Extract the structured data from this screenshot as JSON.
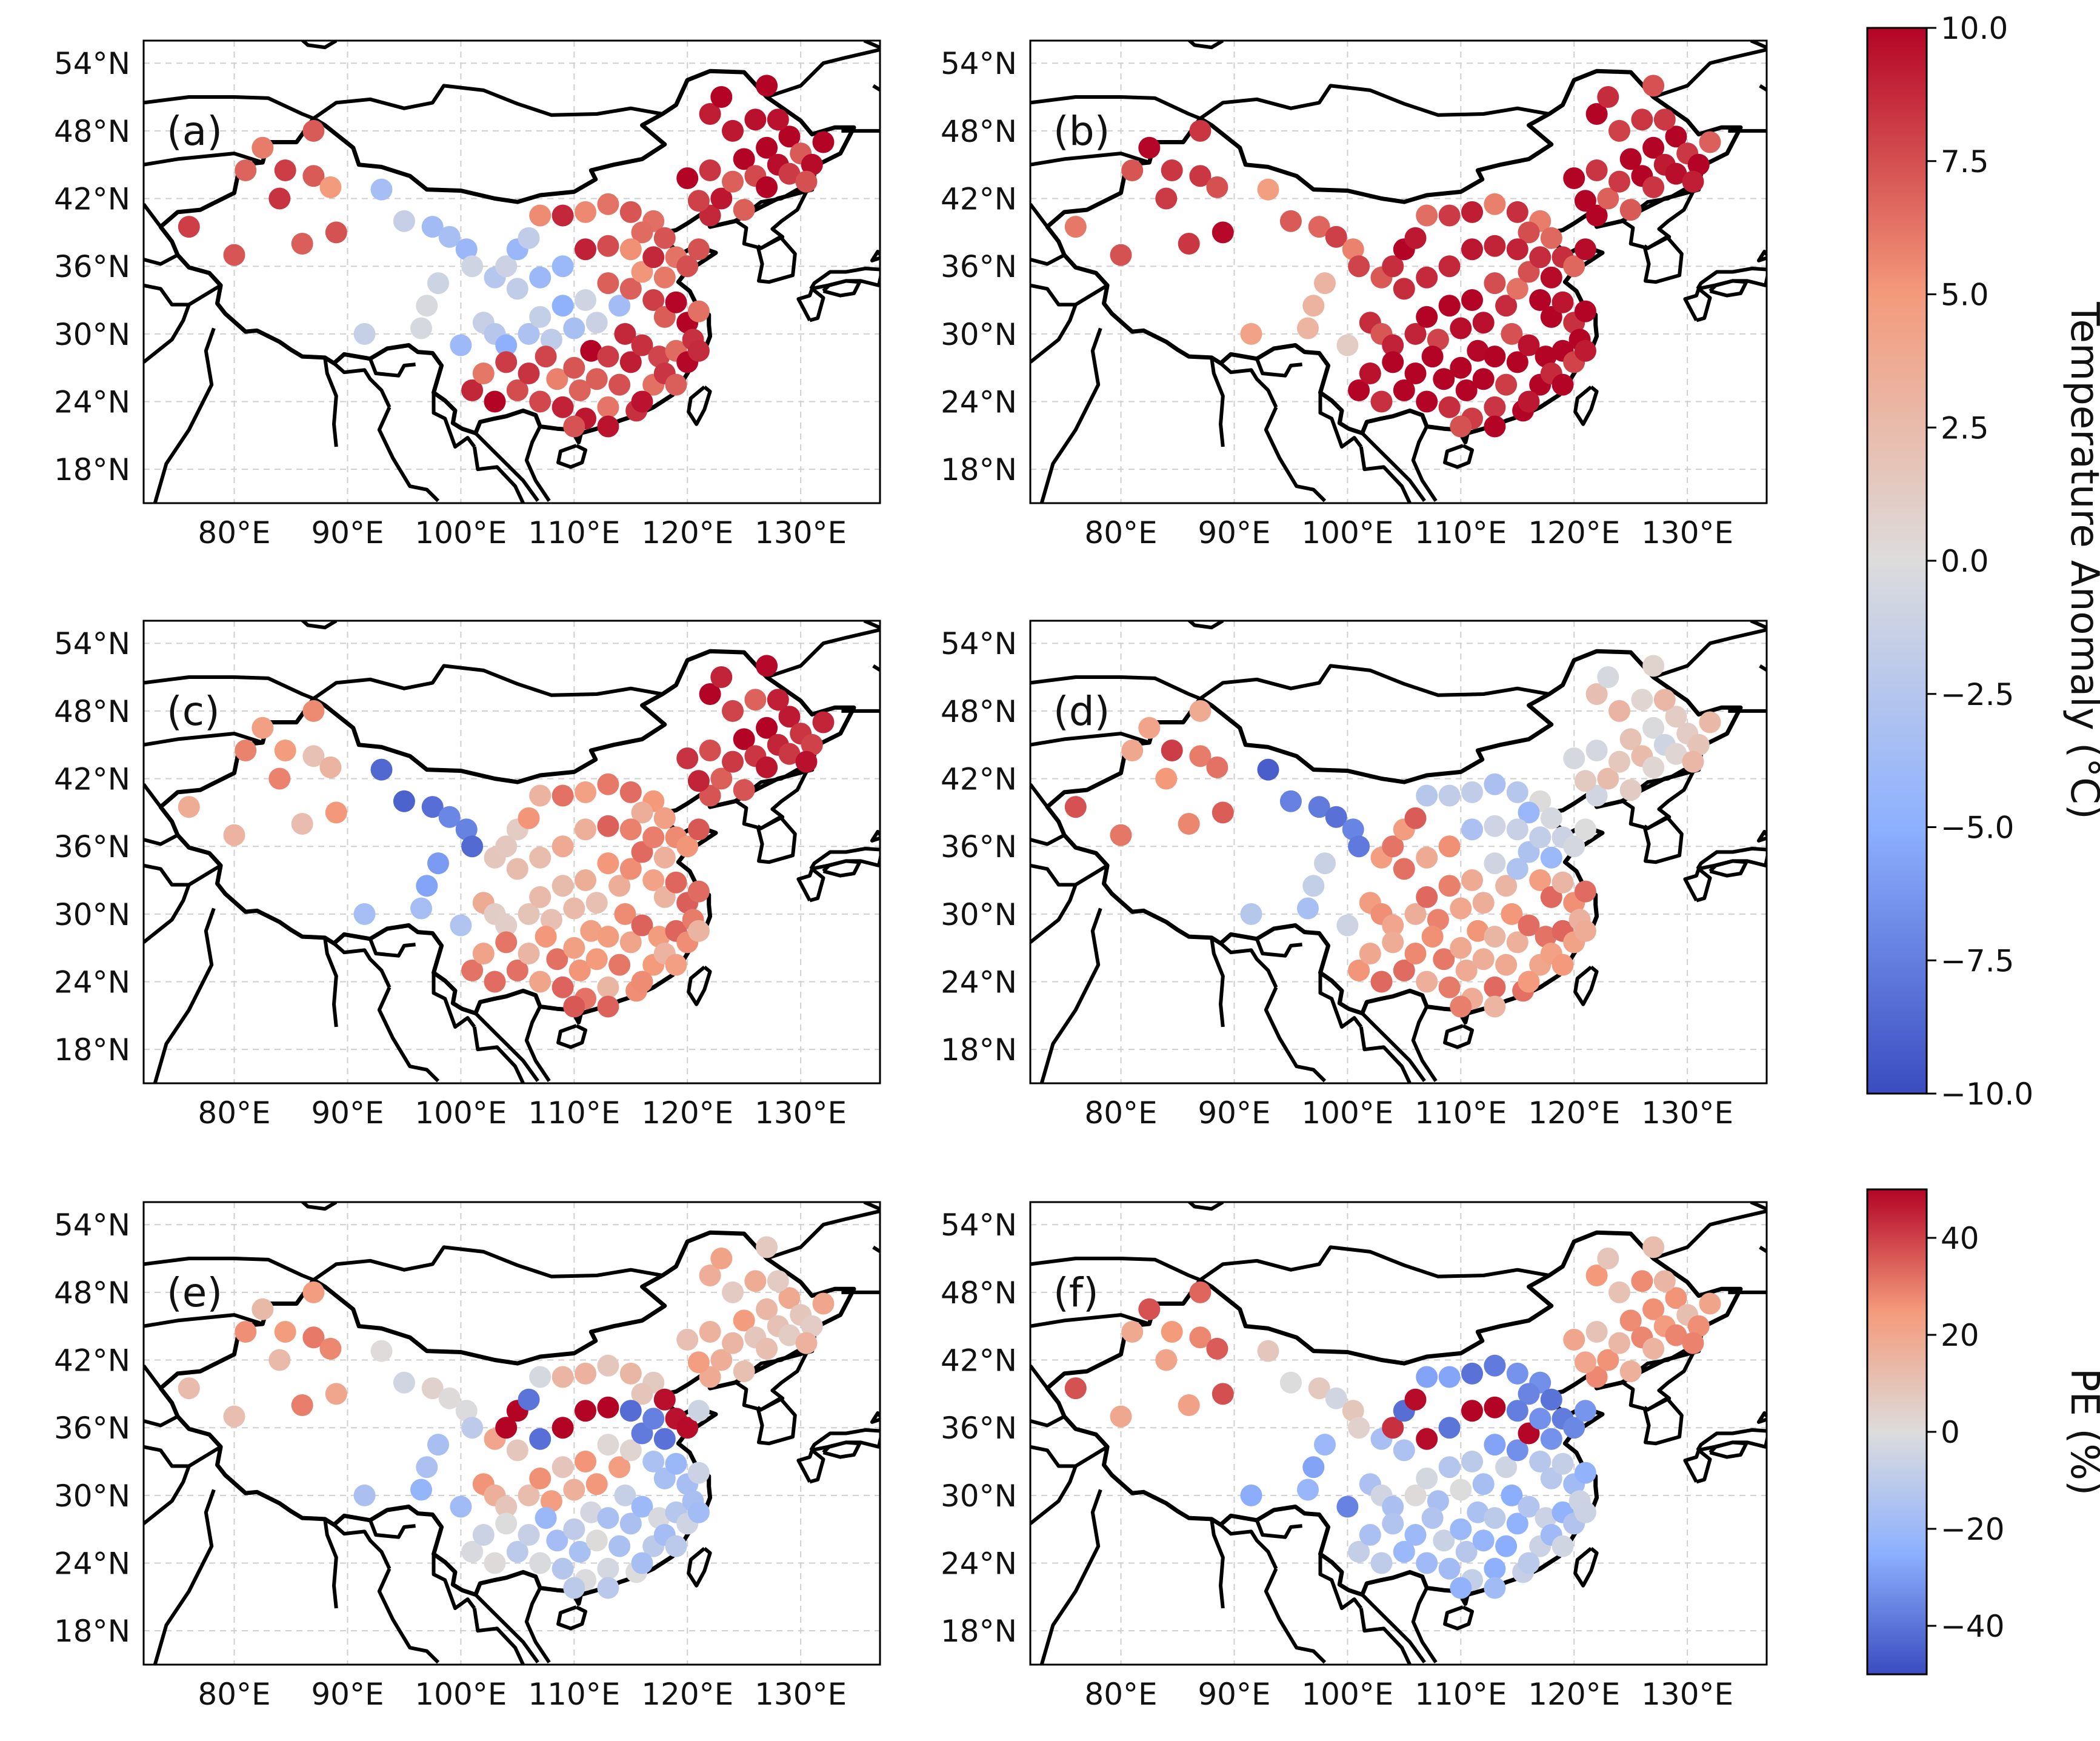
{
  "figure": {
    "colorbar_temperature": {
      "label": "Temperature Anomaly (°C)",
      "range": [
        -10.0,
        10.0
      ],
      "ticks": [
        "10.0",
        "7.5",
        "5.0",
        "2.5",
        "0.0",
        "−2.5",
        "−5.0",
        "−7.5",
        "−10.0"
      ],
      "tick_values": [
        10.0,
        7.5,
        5.0,
        2.5,
        0.0,
        -2.5,
        -5.0,
        -7.5,
        -10.0
      ]
    },
    "colorbar_pe": {
      "label": "PE (%)",
      "range": [
        -50,
        50
      ],
      "ticks": [
        "40",
        "20",
        "0",
        "−20",
        "−40"
      ],
      "tick_values": [
        40,
        20,
        0,
        -20,
        -40
      ]
    },
    "colormap": {
      "low": "#3a4cc0",
      "mid": "#dddcdc",
      "high": "#b40426"
    },
    "coastline_color": "#000000"
  },
  "chart_data": [
    {
      "type": "scatter",
      "panel": "(a)",
      "variable": "Temperature Anomaly (°C)",
      "xlim": [
        72,
        137
      ],
      "ylim": [
        15,
        56
      ],
      "xticks": [
        "80°E",
        "90°E",
        "100°E",
        "110°E",
        "120°E",
        "130°E"
      ],
      "yticks": [
        "54°N",
        "48°N",
        "42°N",
        "36°N",
        "30°N",
        "24°N",
        "18°N"
      ],
      "region_estimates": {
        "northeast": 9,
        "north_china": 7,
        "south_china": 8,
        "central": -3,
        "northwest": -3,
        "tibet": -2,
        "xinjiang_west": 7
      }
    },
    {
      "type": "scatter",
      "panel": "(b)",
      "variable": "Temperature Anomaly (°C)",
      "xlim": [
        72,
        137
      ],
      "ylim": [
        15,
        56
      ],
      "xticks": [
        "80°E",
        "90°E",
        "100°E",
        "110°E",
        "120°E",
        "130°E"
      ],
      "yticks": [
        "54°N",
        "48°N",
        "42°N",
        "36°N",
        "30°N",
        "24°N",
        "18°N"
      ],
      "region_estimates": {
        "northeast": 9,
        "north_china": 8,
        "south_china": 9.5,
        "central": 9,
        "northwest": 6,
        "tibet": 3,
        "xinjiang_west": 8
      }
    },
    {
      "type": "scatter",
      "panel": "(c)",
      "variable": "Temperature Anomaly (°C)",
      "xlim": [
        72,
        137
      ],
      "ylim": [
        15,
        56
      ],
      "xticks": [
        "80°E",
        "90°E",
        "100°E",
        "110°E",
        "120°E",
        "130°E"
      ],
      "yticks": [
        "54°N",
        "48°N",
        "42°N",
        "36°N",
        "30°N",
        "24°N",
        "18°N"
      ],
      "region_estimates": {
        "northeast": 9,
        "north_china": 5,
        "south_china": 5,
        "central": 3,
        "northwest": -7,
        "tibet": -4,
        "xinjiang_west": 4
      }
    },
    {
      "type": "scatter",
      "panel": "(d)",
      "variable": "Temperature Anomaly (°C)",
      "xlim": [
        72,
        137
      ],
      "ylim": [
        15,
        56
      ],
      "xticks": [
        "80°E",
        "90°E",
        "100°E",
        "110°E",
        "120°E",
        "130°E"
      ],
      "yticks": [
        "54°N",
        "48°N",
        "42°N",
        "36°N",
        "30°N",
        "24°N",
        "18°N"
      ],
      "region_estimates": {
        "northeast": 1,
        "north_china": -2,
        "south_china": 5,
        "central": 5,
        "northwest": -7,
        "tibet": -3,
        "xinjiang_west": 6
      }
    },
    {
      "type": "scatter",
      "panel": "(e)",
      "variable": "PE (%)",
      "xlim": [
        72,
        137
      ],
      "ylim": [
        15,
        56
      ],
      "xticks": [
        "80°E",
        "90°E",
        "100°E",
        "110°E",
        "120°E",
        "130°E"
      ],
      "yticks": [
        "54°N",
        "48°N",
        "42°N",
        "36°N",
        "30°N",
        "24°N",
        "18°N"
      ],
      "region_estimates": {
        "northeast": 15,
        "north_china": 5,
        "south_china": -10,
        "central": 18,
        "loess_band": 45,
        "tibet": -25,
        "xinjiang_west": 20
      }
    },
    {
      "type": "scatter",
      "panel": "(f)",
      "variable": "PE (%)",
      "xlim": [
        72,
        137
      ],
      "ylim": [
        15,
        56
      ],
      "xticks": [
        "80°E",
        "90°E",
        "100°E",
        "110°E",
        "120°E",
        "130°E"
      ],
      "yticks": [
        "54°N",
        "48°N",
        "42°N",
        "36°N",
        "30°N",
        "24°N",
        "18°N"
      ],
      "region_estimates": {
        "northeast": 20,
        "north_china": -35,
        "south_china": -15,
        "central": -10,
        "loess_band": 40,
        "tibet": -30,
        "xinjiang_west": 30
      }
    }
  ]
}
